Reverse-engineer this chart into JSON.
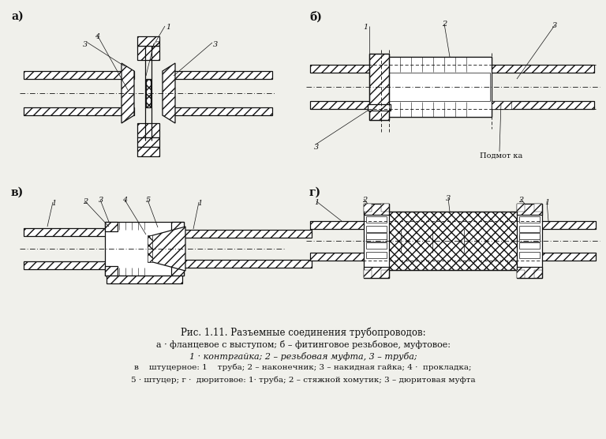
{
  "bg_color": "#f0f0eb",
  "white": "#ffffff",
  "black": "#111111",
  "title_line1": "Рис. 1.11. Разъемные соединения трубопроводов:",
  "title_line2": "а · фланцевое с выступом; б – фитинговое резьбовое, муфтовое:",
  "title_line3": "1 · контргайка; 2 – резьбовая муфта, 3 – труба;",
  "title_line4": "в    штуцерное: 1    труба; 2 – наконечник; 3 – накидная гайка; 4 ·  прокладка;",
  "title_line5": "5 · штуцер; г ·  дюритовое: 1· труба; 2 – стяжной хомутик; 3 – дюритовая муфта",
  "label_a": "а)",
  "label_b": "б)",
  "label_v": "в)",
  "label_g": "г)"
}
